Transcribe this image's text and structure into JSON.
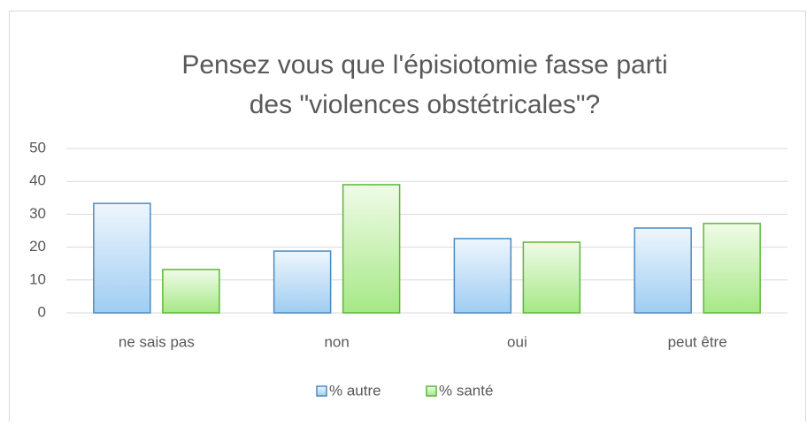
{
  "chart_data": {
    "type": "bar",
    "title": [
      "Pensez vous que l'épisiotomie fasse parti",
      "des \"violences obstétricales\"?"
    ],
    "categories": [
      "ne sais pas",
      "non",
      "oui",
      "peut être"
    ],
    "series": [
      {
        "name": "% autre",
        "color": "#4a8bc2",
        "values": [
          33.3,
          18.8,
          22.6,
          25.8
        ]
      },
      {
        "name": "% santé",
        "color": "#5cb83a",
        "values": [
          13.2,
          39,
          21.5,
          27.2
        ]
      }
    ],
    "ylim": [
      0,
      50
    ],
    "yticks": [
      0,
      10,
      20,
      30,
      40,
      50
    ],
    "grid": true,
    "legend": "bottom"
  }
}
